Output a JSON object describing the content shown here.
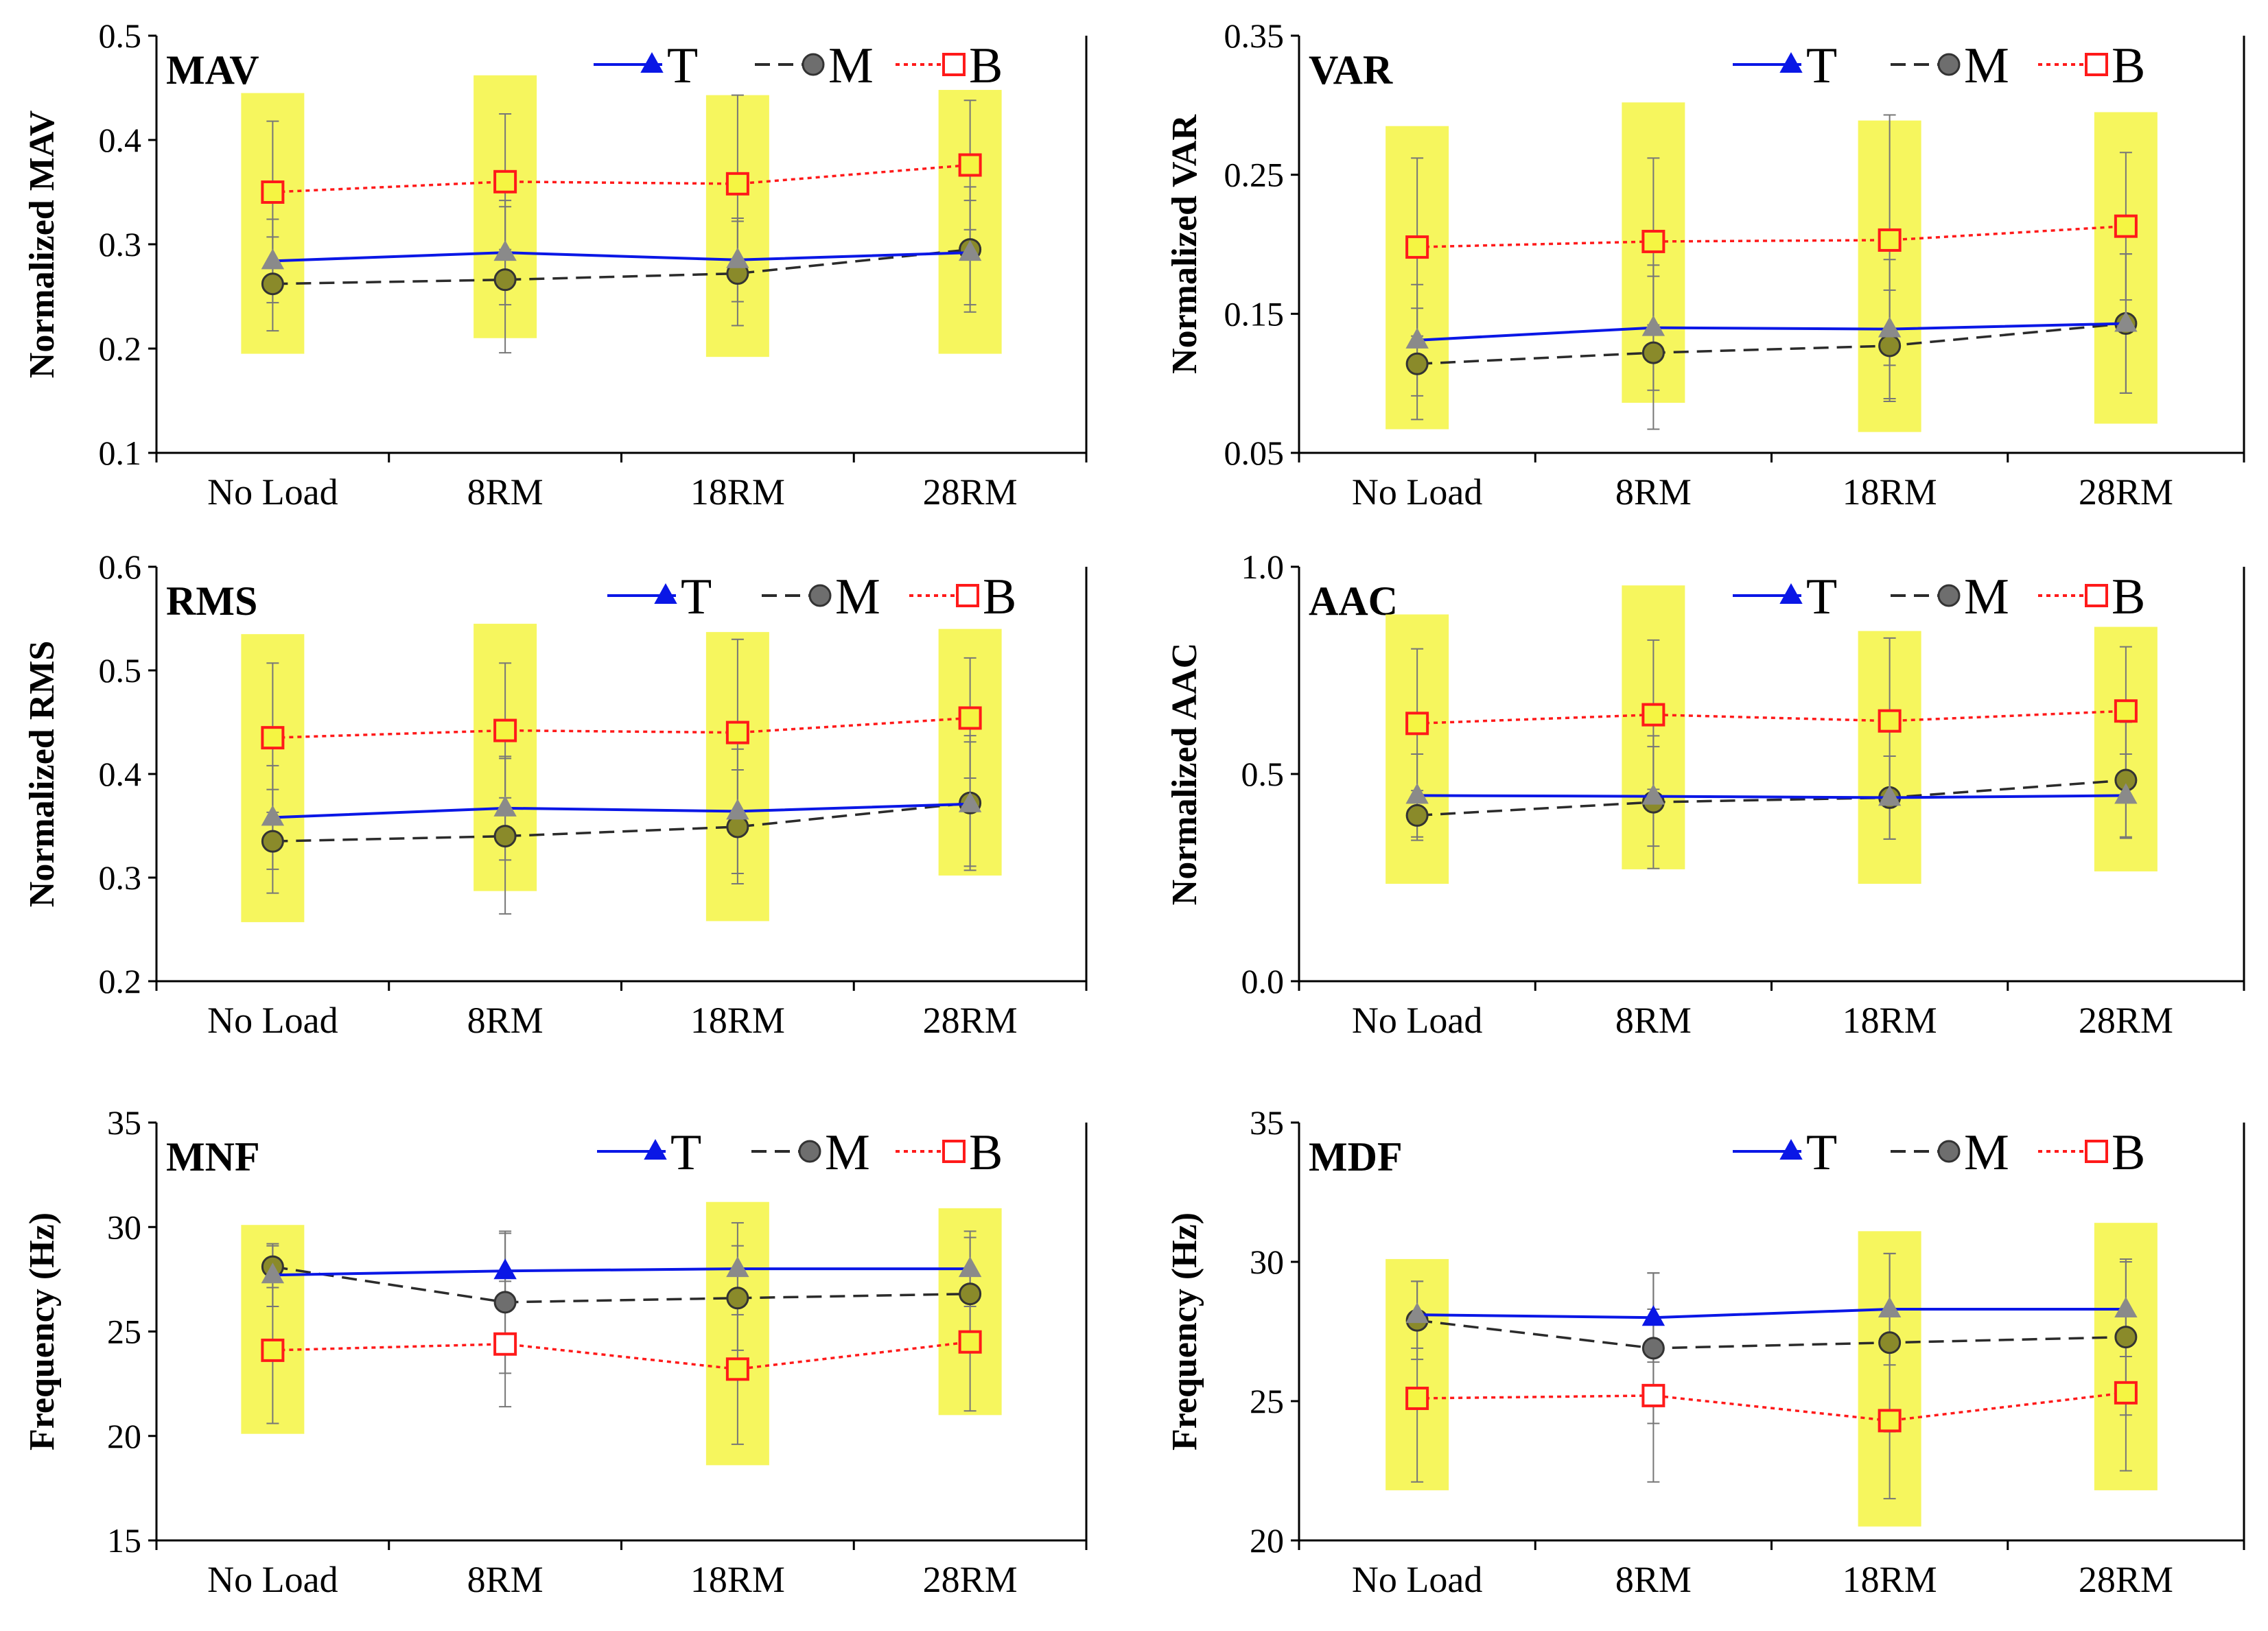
{
  "chart_data": [
    {
      "type": "line",
      "title": "MAV",
      "ylabel": "Normalized  MAV",
      "categories": [
        "No Load",
        "8RM",
        "18RM",
        "28RM"
      ],
      "ylim": [
        0.1,
        0.5
      ],
      "yticks": [
        "0.1",
        "0.2",
        "0.3",
        "0.4",
        "0.5"
      ],
      "highlight": [
        [
          0.195,
          0.445
        ],
        [
          0.21,
          0.462
        ],
        [
          0.192,
          0.443
        ],
        [
          0.195,
          0.448
        ]
      ],
      "series": [
        {
          "name": "T",
          "values": [
            0.284,
            0.292,
            0.285,
            0.292
          ],
          "err": [
            0.04,
            0.05,
            0.04,
            0.05
          ]
        },
        {
          "name": "M",
          "values": [
            0.262,
            0.266,
            0.272,
            0.295
          ],
          "err": [
            0.045,
            0.07,
            0.05,
            0.06
          ]
        },
        {
          "name": "B",
          "values": [
            0.35,
            0.36,
            0.358,
            0.376
          ],
          "err": [
            0.068,
            0.065,
            0.085,
            0.062
          ]
        }
      ]
    },
    {
      "type": "line",
      "title": "VAR",
      "ylabel": "Normalized  VAR",
      "categories": [
        "No Load",
        "8RM",
        "18RM",
        "28RM"
      ],
      "ylim": [
        0.05,
        0.35
      ],
      "yticks": [
        "0.05",
        "0.15",
        "0.25",
        "0.35"
      ],
      "highlight": [
        [
          0.067,
          0.285
        ],
        [
          0.086,
          0.302
        ],
        [
          0.065,
          0.289
        ],
        [
          0.071,
          0.295
        ]
      ],
      "series": [
        {
          "name": "T",
          "values": [
            0.131,
            0.14,
            0.139,
            0.143
          ],
          "err": [
            0.04,
            0.045,
            0.05,
            0.05
          ]
        },
        {
          "name": "M",
          "values": [
            0.114,
            0.122,
            0.127,
            0.143
          ],
          "err": [
            0.04,
            0.055,
            0.04,
            0.05
          ]
        },
        {
          "name": "B",
          "values": [
            0.198,
            0.202,
            0.203,
            0.213
          ],
          "err": [
            0.064,
            0.06,
            0.09,
            0.053
          ]
        }
      ]
    },
    {
      "type": "line",
      "title": "RMS",
      "ylabel": "Normalized  RMS",
      "categories": [
        "No Load",
        "8RM",
        "18RM",
        "28RM"
      ],
      "ylim": [
        0.2,
        0.6
      ],
      "yticks": [
        "0.2",
        "0.3",
        "0.4",
        "0.5",
        "0.6"
      ],
      "highlight": [
        [
          0.257,
          0.535
        ],
        [
          0.287,
          0.545
        ],
        [
          0.258,
          0.537
        ],
        [
          0.302,
          0.54
        ]
      ],
      "series": [
        {
          "name": "T",
          "values": [
            0.358,
            0.367,
            0.364,
            0.371
          ],
          "err": [
            0.05,
            0.05,
            0.06,
            0.06
          ]
        },
        {
          "name": "M",
          "values": [
            0.335,
            0.34,
            0.349,
            0.372
          ],
          "err": [
            0.05,
            0.075,
            0.055,
            0.065
          ]
        },
        {
          "name": "B",
          "values": [
            0.435,
            0.442,
            0.44,
            0.454
          ],
          "err": [
            0.072,
            0.065,
            0.09,
            0.058
          ]
        }
      ]
    },
    {
      "type": "line",
      "title": "AAC",
      "ylabel": "Normalized  AAC",
      "categories": [
        "No Load",
        "8RM",
        "18RM",
        "28RM"
      ],
      "ylim": [
        0.0,
        1.0
      ],
      "yticks": [
        "0.0",
        "0.5",
        "1.0"
      ],
      "highlight": [
        [
          0.235,
          0.885
        ],
        [
          0.27,
          0.955
        ],
        [
          0.235,
          0.845
        ],
        [
          0.265,
          0.855
        ]
      ],
      "series": [
        {
          "name": "T",
          "values": [
            0.448,
            0.446,
            0.443,
            0.448
          ],
          "err": [
            0.1,
            0.12,
            0.1,
            0.1
          ]
        },
        {
          "name": "M",
          "values": [
            0.4,
            0.432,
            0.443,
            0.485
          ],
          "err": [
            0.06,
            0.16,
            0.1,
            0.14
          ]
        },
        {
          "name": "B",
          "values": [
            0.622,
            0.643,
            0.628,
            0.652
          ],
          "err": [
            0.18,
            0.18,
            0.2,
            0.155
          ]
        }
      ]
    },
    {
      "type": "line",
      "title": "MNF",
      "ylabel": "Frequency (Hz)",
      "categories": [
        "No Load",
        "8RM",
        "18RM",
        "28RM"
      ],
      "ylim": [
        15,
        35
      ],
      "yticks": [
        "15",
        "20",
        "25",
        "30",
        "35"
      ],
      "highlight": [
        [
          20.1,
          30.1
        ],
        null,
        [
          18.6,
          31.2
        ],
        [
          21.0,
          30.9
        ]
      ],
      "series": [
        {
          "name": "T",
          "values": [
            27.7,
            27.9,
            28.0,
            28.0
          ],
          "err": [
            1.5,
            1.8,
            2.2,
            1.8
          ]
        },
        {
          "name": "M",
          "values": [
            28.1,
            26.4,
            26.6,
            26.8
          ],
          "err": [
            1.0,
            3.4,
            2.5,
            2.7
          ]
        },
        {
          "name": "B",
          "values": [
            24.1,
            24.4,
            23.2,
            24.5
          ],
          "err": [
            3.5,
            3.0,
            3.6,
            3.3
          ]
        }
      ]
    },
    {
      "type": "line",
      "title": "MDF",
      "ylabel": "Frequency (Hz)",
      "categories": [
        "No Load",
        "8RM",
        "18RM",
        "28RM"
      ],
      "ylim": [
        20,
        35
      ],
      "yticks": [
        "20",
        "25",
        "30",
        "35"
      ],
      "highlight": [
        [
          21.8,
          30.1
        ],
        null,
        [
          20.5,
          31.1
        ],
        [
          21.8,
          31.4
        ]
      ],
      "series": [
        {
          "name": "T",
          "values": [
            28.1,
            28.0,
            28.3,
            28.3
          ],
          "err": [
            1.2,
            1.6,
            2.0,
            1.7
          ]
        },
        {
          "name": "M",
          "values": [
            27.9,
            26.9,
            27.1,
            27.3
          ],
          "err": [
            1.4,
            2.7,
            3.2,
            2.8
          ]
        },
        {
          "name": "B",
          "values": [
            25.1,
            25.2,
            24.3,
            25.3
          ],
          "err": [
            3.0,
            3.1,
            2.8,
            2.8
          ]
        }
      ]
    }
  ]
}
